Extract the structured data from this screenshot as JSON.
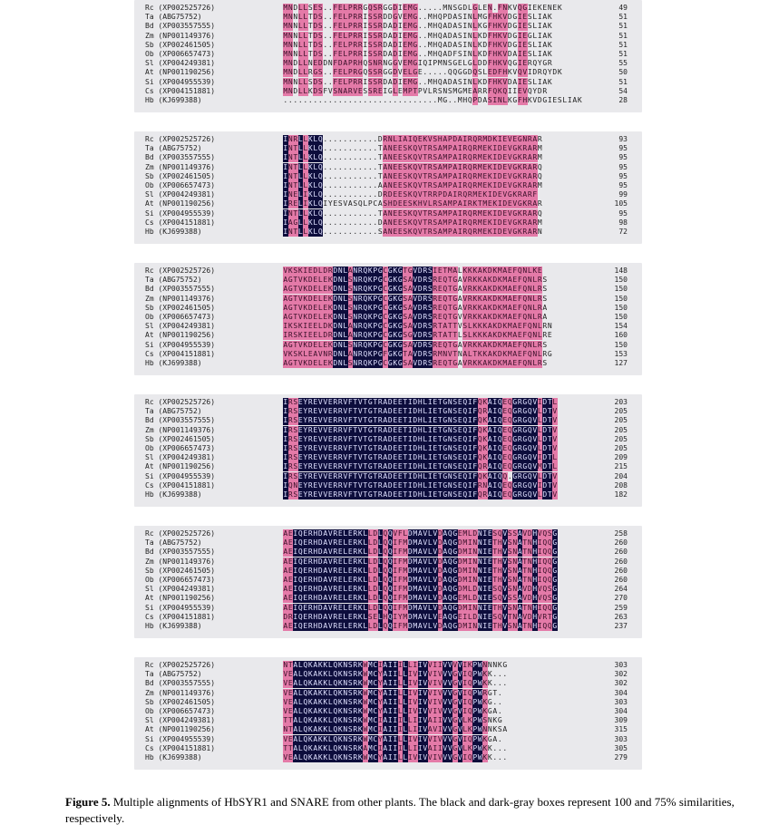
{
  "species": [
    "Rc (XP002525726)",
    "Ta (ABG75752)",
    "Bd (XP003557555)",
    "Zm (NP001149376)",
    "Sb (XP002461505)",
    "Ob (XP006657473)",
    "Sl (XP004249381)",
    "At (NP001190256)",
    "Si (XP004955539)",
    "Cs (XP004151881)",
    "Hb (KJ699388)"
  ],
  "blocks": [
    {
      "numbers": [
        "49",
        "51",
        "51",
        "51",
        "51",
        "51",
        "55",
        "50",
        "51",
        "54",
        "28"
      ],
      "seqs": [
        "MNDLLSES..FELPRRGQSRGGDIEMG.....MNSGDLGLEN.FNKVQGIEKENEK",
        "MNNLLTDS..FELPRRISSRDDGVEMG..MHQPDASINLMGFHKVDGIESLIAK",
        "MNNLLTDS..FELPRRISSRDADIEMG..MHQADASINLKGFHKVDGIESLIAK",
        "MNNLLTDS..FELPRRISSRDADIEMG..MHQADASINLKDFHKVDGIEGLIAK",
        "MNNLLTDS..FELPRRISSRDADIEMG..MHQADASINLKDFHKVDGIESLIAK",
        "MNNLLTDS..FELPRRISSRDADIEMG..MHQADFSINLKDFHKVDAIESLIAK",
        "MNDLLNEDDNFDAPRHQSNRNGGVEMGIQIPMNSGELGLDDFHKVQGIERQYGR",
        "MNDLLRGS..FELPRGQSSRGGDVELGE.....QQGGDQSLEDFHKVQVIDRQYDK",
        "MNNLLSDS..FELPRRISSRDADIEMG..MHQADASINLKDFHKVDAIESLIAK",
        "MNDLLKDSFVSNARVESSREIGLEMPTPVLRSNSMGMEARRFQKQIIEVQYDR",
        "...............................MG..MHQPDASINLKGFHKVDGIESLIAK"
      ]
    },
    {
      "numbers": [
        "93",
        "95",
        "95",
        "95",
        "95",
        "95",
        "99",
        "105",
        "95",
        "98",
        "72"
      ],
      "seqs": [
        "INRLLKLQ...........DRNLIAIQEKVSHAPDAIRQRMDKIEVEGNRAR",
        "INTLLKLQ...........TANEESKQVTRSAMPAIRQRMEKIDEVGKRARM",
        "INTLLKLQ...........TANEESKQVTRSAMPAIRQRMEKIDEVGKRARM",
        "INTLLKLQ...........TANEESKQVTRSAMPAIRQRMEKIDEVGKRARQ",
        "INTLLKLQ...........TANEESKQVTRSAMPAIRQRMEKIDEVGKRARQ",
        "INTLLKLQ...........AANEESKQVTRSAMPAIRQRMEKIDEVGKRARM",
        "INELIKLQ...........DRDEESKQVTRRPDAIRQRMEKIDEVGKRARF",
        "IRELIKLQIYESVASQLPCASHDEESKHVLRSAMPAIRKTMEKIDEVGKRAR",
        "INTLLKLQ...........TANEESKQVTRSAMPAIRQRMEKIDEVGKRARQ",
        "IAGLLKLQ...........DANEESKQVTRSAMPAIRQRMEKIDEVGKRARM",
        "INTLLKLQ...........SANEESKQVTRSAMPAIRQRMEKIDEVGKRARN"
      ]
    },
    {
      "numbers": [
        "148",
        "150",
        "150",
        "150",
        "150",
        "150",
        "154",
        "160",
        "150",
        "153",
        "127"
      ],
      "seqs": [
        "VKSKIEDLDRDNLANRQKPGCGKGTGVDRSIETMALKKKAKDKMAEFQNLKE",
        "AGTVKDELEKDNLSNRQKPGCGKGSAVDRSREQTGAVRKKAKDKMAEFQNLRS",
        "AGTVKDELEKDNLSNRQKPGCGKGSAVDRSREQTGAVRKKAKDKMAEFQNLRS",
        "AGTVKDELEKDNLSNRQKPGCGKGSAVDRSREQTGAVRKKAKDKMAEFQNLRS",
        "AGTVKDELEKDNLSNRQKPGCGKGSAVDRSREQTGAVRKKAKDKMAEFQNLRA",
        "AGTVKDELEKDNLSNRQKPGCGKGSAVDRSREQTGVVRKKAKDKMAEFQNLRA",
        "IKSKIEELDKDNLANRQKPGCGKGSAVDRSRTATTVSLKKKAKDKMAEFQNLRN",
        "IRSKIEELDRDNLANRQKPGCGKGSGVDRSRTATTLSLKKKAKDKMAEFQNLRE",
        "AGTVKDELEKDNLSNRQKPGCGKGSAVDRSREQTGAVRKKAKDKMAEFQNLRS",
        "VKSKLEAVNRDNLANRQKPGFGKGTAVDRSRMNVTNALTKKAKDKMAEFQNLRG",
        "AGTVKDELEKDNLSNRQKPGCGKGSAVDRSREQTGAVRKKAKDKMAEFQNLRS"
      ]
    },
    {
      "numbers": [
        "203",
        "205",
        "205",
        "205",
        "205",
        "205",
        "209",
        "215",
        "204",
        "208",
        "182"
      ],
      "seqs": [
        "IRSEYREVVERRVFTVTGTRADEETIDHLIETGNSEQIFQKAIQEQGRGQVIDTL",
        "IRSEYREVVERRVFTVTGTRADEETIDHLIETGNSEQIFQRAIQEQGRGQVLDTV",
        "IRSEYREVVERRVFTVTGTRADEETIDHLIETGNSEQIFQKAIQEQGRGQVLDTV",
        "IRSEYREVVERRVFTVTGTRADEETIDHLIETGNSEQIFQKAIQEQGRGQVLDTV",
        "IRSEYREVVERRVFTVTGTRADEETIDHLIETGNSEQIFQKAIQEQGRGQVLDTV",
        "IRSEYREVVERRVFTVTGTRADEETIDHLIETGNSEQIFQKAIQEQGRGQVLDTV",
        "IRSEYREVVERRVFTVTGTRADEETIDHLIETGNSEQIFQKAIQEQGRGQVIDTL",
        "IRSEYREVVERRVFTVTGTRADEETIDHLIETGNSEQIFQRAIQEQGRGQVMDTL",
        "IRSEYREVVERRVFTVTGTRADEETIDHLIETGNSEQIFQKAIQQ.GRGQVLDTV",
        "IQNEYREVVERRVFTVTGTRADEETIDHLIETGNSEQIFRNAIQEQGRGQVIDTV",
        "IRSEYREVVERRVFTVTGTRADEETIDHLIETGNSEQIFQRAIQEQGRGQVLDTV"
      ]
    },
    {
      "numbers": [
        "258",
        "260",
        "260",
        "260",
        "260",
        "260",
        "264",
        "270",
        "259",
        "263",
        "237"
      ],
      "seqs": [
        "AEIQERHDAVRELERKLLDLQQVFLDMAVLVDAQGEMLDNIESQVSSAVDHVQSG",
        "AEIQERHDAVRELERKLLDLQQIFMDMAVLVDAQGDMINNIETHVSNATNHIQQG",
        "AEIQERHDAVRELERKLLDLQQIFMDMAVLVDAQGDMINNIETHVSNATNHIQQG",
        "AEIQERHDAVRELERKLLDLQQIFMDMAVLVDAQGDMINNIETHVSNATNHIQQG",
        "AEIQERHDAVRELERKLLDLQQIFMDMAVLVDAQGDMINNIETHVSNATNHIQQG",
        "AEIQERHDAVRELERKLLDLQQIFMDMAVLVDAQGDMINNIETHVSNATNHIQQG",
        "AEIQERHDAVRELERKLLDLQQIFMDMAVLVDAQGDMLDNIESQVSNAVDHVQSG",
        "AEIQERHDAVRELERKLLDLQQIFMDMAVLVDAQGEMLDNIESQVSSAVDHVQSG",
        "AEIQERHDAVRELERKLLDLQQIFMDMAVLVDAQGDMINNIETHVSNATNHIQQG",
        "DRIQERHDAVRELERKLSELHQIYMDMAVLVEAQGEILDNIESQVTNAVDHVRTG",
        "AEIQERHDAVRELERKLLDLQQIFMDMAVLVDAQGDMINNIETHVSNATNHIQQG"
      ]
    },
    {
      "numbers": [
        "303",
        "302",
        "302",
        "304",
        "303",
        "304",
        "309",
        "315",
        "303",
        "305",
        "279"
      ],
      "seqs": [
        "NTALQKAKKLQKNSRKWMCIAIIILLIIVVIIVVVVIKPWNNNKG",
        "VEALQKAKKLQKNSRKWMCYAIILLIVIVVIVVVGVIQPWKK...",
        "VEALQKAKKLQKNSRKWMCYAIILLIVIVVIVVVGVIQPWKK...",
        "VEALQKAKKLQKNSRKWMCYAIILLIVIVVIVVVGVIQPWRGT.",
        "VEALQKAKKLQKNSRKWMCYAIILLIVIVVIVVVGVIQPWKG..",
        "VEALQKAKKLQKNSRKWMCYAIILLIVIVVIVVVGVIQPWKGA.",
        "TTALQKAKKLQKNSRKWMCIAIIILLIIVAIIVVGVLKPWSNKG",
        "NTALQKAKKLQKNSRKWMCIAIIILLIIVAVIVVGVLKPWNNKSA",
        "VEALQKAKKLQKNSRKWMCYAIILLIVIVVIVVVGVIQPWKGA.",
        "TTALQKAKKLQKNSRKAMCIAIIILLIIVAIIVVGVLKPWKK...",
        "VEALQKAKKLQKNSRKWMCYAIILLIVIVVIVVVGVIQPWKK..."
      ]
    }
  ],
  "caption": {
    "label": "Figure 5.",
    "text": " Multiple alignments of HbSYR1 and SNARE from other plants. The black and dark-gray boxes represent 100 and 75% similarities, respectively."
  },
  "colors": {
    "identical": "#0d0d3c",
    "similar": "#e47aa8",
    "block_bg": "#e9e9ec"
  }
}
